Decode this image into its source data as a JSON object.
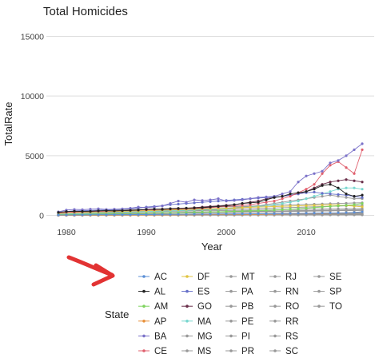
{
  "chart_data": {
    "type": "line",
    "title": "Total Homicides",
    "xlabel": "Year",
    "ylabel": "TotalRate",
    "xlim": [
      1977.5,
      2018.5
    ],
    "ylim": [
      -700,
      15700
    ],
    "x_ticks": [
      1980,
      1990,
      2000,
      2010
    ],
    "y_ticks": [
      0,
      5000,
      10000,
      15000
    ],
    "y_tick_labels": [
      "0",
      "5000",
      "10000",
      "15000"
    ],
    "grid": true,
    "legend_title": "State",
    "legend_position": "bottom",
    "x": [
      1979,
      1980,
      1981,
      1982,
      1983,
      1984,
      1985,
      1986,
      1987,
      1988,
      1989,
      1990,
      1991,
      1992,
      1993,
      1994,
      1995,
      1996,
      1997,
      1998,
      1999,
      2000,
      2001,
      2002,
      2003,
      2004,
      2005,
      2006,
      2007,
      2008,
      2009,
      2010,
      2011,
      2012,
      2013,
      2014,
      2015,
      2016,
      2017
    ],
    "series": [
      {
        "name": "AC",
        "color": "#5b8fd6",
        "values": [
          30,
          35,
          40,
          45,
          50,
          55,
          55,
          60,
          60,
          65,
          70,
          70,
          75,
          80,
          80,
          85,
          90,
          95,
          100,
          105,
          110,
          115,
          120,
          125,
          130,
          135,
          140,
          145,
          150,
          155,
          160,
          170,
          180,
          190,
          200,
          210,
          220,
          250,
          300
        ]
      },
      {
        "name": "AL",
        "color": "#222222",
        "values": [
          250,
          320,
          350,
          330,
          340,
          380,
          400,
          380,
          400,
          420,
          450,
          500,
          520,
          500,
          550,
          570,
          600,
          620,
          650,
          700,
          750,
          800,
          900,
          1000,
          1050,
          1100,
          1300,
          1500,
          1600,
          1800,
          1900,
          2000,
          2200,
          2500,
          2600,
          2300,
          1800,
          1600,
          1700
        ]
      },
      {
        "name": "AM",
        "color": "#7fd45f",
        "values": [
          60,
          70,
          80,
          90,
          100,
          110,
          120,
          130,
          140,
          150,
          160,
          170,
          180,
          190,
          200,
          210,
          230,
          250,
          270,
          290,
          300,
          320,
          340,
          360,
          380,
          400,
          420,
          450,
          480,
          520,
          560,
          600,
          650,
          700,
          750,
          800,
          850,
          900,
          1000
        ]
      },
      {
        "name": "AP",
        "color": "#e8903a",
        "values": [
          10,
          12,
          15,
          18,
          20,
          22,
          25,
          28,
          30,
          32,
          35,
          38,
          40,
          42,
          45,
          48,
          50,
          55,
          60,
          65,
          70,
          75,
          80,
          85,
          90,
          95,
          100,
          110,
          120,
          130,
          140,
          150,
          160,
          170,
          180,
          190,
          200,
          250,
          300
        ]
      },
      {
        "name": "BA",
        "color": "#7b72c9",
        "values": [
          300,
          450,
          500,
          480,
          520,
          560,
          500,
          520,
          550,
          600,
          700,
          650,
          700,
          800,
          1000,
          1200,
          1100,
          1300,
          1250,
          1300,
          1400,
          1200,
          1250,
          1300,
          1400,
          1500,
          1550,
          1600,
          1800,
          2000,
          2800,
          3300,
          3500,
          3700,
          4400,
          4600,
          5000,
          5500,
          6000
        ]
      },
      {
        "name": "CE",
        "color": "#e0606e",
        "values": [
          200,
          250,
          280,
          300,
          320,
          340,
          360,
          380,
          400,
          420,
          440,
          460,
          480,
          500,
          520,
          540,
          560,
          580,
          600,
          650,
          700,
          750,
          800,
          850,
          900,
          1000,
          1100,
          1200,
          1400,
          1600,
          1900,
          2200,
          2600,
          3500,
          4200,
          4500,
          4000,
          3500,
          5500
        ]
      },
      {
        "name": "DF",
        "color": "#e0c440",
        "values": [
          150,
          200,
          220,
          240,
          260,
          280,
          300,
          320,
          340,
          360,
          380,
          400,
          420,
          440,
          460,
          480,
          500,
          520,
          540,
          560,
          580,
          600,
          620,
          650,
          680,
          700,
          720,
          740,
          760,
          780,
          800,
          820,
          840,
          860,
          880,
          860,
          820,
          780,
          720
        ]
      },
      {
        "name": "ES",
        "color": "#6670c8",
        "values": [
          250,
          330,
          380,
          400,
          420,
          440,
          460,
          480,
          520,
          560,
          620,
          700,
          750,
          800,
          900,
          950,
          1000,
          1050,
          1100,
          1150,
          1200,
          1250,
          1300,
          1350,
          1400,
          1450,
          1500,
          1550,
          1600,
          1700,
          1800,
          1900,
          1950,
          1850,
          1800,
          1750,
          1700,
          1600,
          1500
        ]
      },
      {
        "name": "GO",
        "color": "#6a2f4a",
        "values": [
          150,
          200,
          250,
          280,
          300,
          330,
          360,
          380,
          400,
          430,
          460,
          480,
          500,
          520,
          550,
          580,
          600,
          650,
          700,
          750,
          800,
          850,
          900,
          1000,
          1100,
          1200,
          1400,
          1500,
          1600,
          1700,
          1800,
          2000,
          2300,
          2600,
          2800,
          2900,
          3000,
          2900,
          2800
        ]
      },
      {
        "name": "MA",
        "color": "#78d7cf",
        "values": [
          100,
          120,
          140,
          160,
          180,
          200,
          220,
          240,
          260,
          280,
          300,
          320,
          340,
          360,
          380,
          400,
          420,
          450,
          480,
          500,
          520,
          550,
          600,
          650,
          700,
          750,
          800,
          900,
          1000,
          1100,
          1200,
          1400,
          1600,
          1800,
          2000,
          2200,
          2300,
          2300,
          2200
        ]
      },
      {
        "name": "MG",
        "color": "#999999",
        "values": [
          200,
          220,
          230,
          240,
          250,
          260,
          280,
          300,
          320,
          340,
          360,
          380,
          400,
          420,
          440,
          460,
          480,
          500,
          520,
          540,
          560,
          600,
          650,
          700,
          750,
          800,
          900,
          1000,
          1100,
          1200,
          1300,
          1400,
          1500,
          1600,
          1700,
          1600,
          1500,
          1400,
          1400
        ]
      },
      {
        "name": "MS",
        "color": "#999999",
        "values": [
          50,
          60,
          70,
          80,
          90,
          100,
          110,
          120,
          130,
          140,
          150,
          160,
          170,
          180,
          190,
          200,
          210,
          220,
          230,
          240,
          250,
          260,
          270,
          280,
          290,
          300,
          310,
          320,
          330,
          340,
          350,
          360,
          370,
          380,
          390,
          400,
          410,
          420,
          430
        ]
      },
      {
        "name": "MT",
        "color": "#999999",
        "values": [
          40,
          50,
          60,
          70,
          80,
          90,
          100,
          110,
          120,
          130,
          140,
          150,
          160,
          170,
          180,
          190,
          200,
          210,
          220,
          230,
          240,
          250,
          260,
          270,
          280,
          290,
          300,
          310,
          320,
          330,
          340,
          350,
          360,
          370,
          380,
          390,
          400,
          410,
          420
        ]
      },
      {
        "name": "PA",
        "color": "#999999",
        "values": [
          80,
          100,
          120,
          140,
          160,
          180,
          200,
          220,
          240,
          260,
          280,
          300,
          320,
          340,
          360,
          380,
          400,
          420,
          440,
          460,
          480,
          500,
          520,
          540,
          560,
          580,
          600,
          620,
          640,
          660,
          680,
          700,
          720,
          740,
          760,
          780,
          800,
          820,
          840
        ]
      },
      {
        "name": "PB",
        "color": "#999999",
        "values": [
          30,
          35,
          40,
          45,
          50,
          55,
          60,
          65,
          70,
          75,
          80,
          85,
          90,
          95,
          100,
          105,
          110,
          115,
          120,
          125,
          130,
          135,
          140,
          145,
          150,
          155,
          160,
          165,
          170,
          175,
          180,
          185,
          190,
          195,
          200,
          205,
          210,
          215,
          220
        ]
      },
      {
        "name": "PE",
        "color": "#999999",
        "values": [
          100,
          110,
          120,
          130,
          140,
          150,
          160,
          170,
          180,
          190,
          200,
          210,
          220,
          230,
          240,
          250,
          260,
          270,
          280,
          290,
          300,
          310,
          320,
          330,
          340,
          350,
          360,
          370,
          380,
          390,
          400,
          410,
          420,
          430,
          440,
          450,
          460,
          470,
          480
        ]
      },
      {
        "name": "PI",
        "color": "#999999",
        "values": [
          20,
          22,
          24,
          26,
          28,
          30,
          32,
          34,
          36,
          38,
          40,
          42,
          44,
          46,
          48,
          50,
          52,
          54,
          56,
          58,
          60,
          62,
          64,
          66,
          68,
          70,
          72,
          74,
          76,
          78,
          80,
          82,
          84,
          86,
          88,
          90,
          92,
          94,
          96
        ]
      },
      {
        "name": "PR",
        "color": "#999999",
        "values": [
          60,
          70,
          80,
          90,
          100,
          110,
          120,
          130,
          140,
          150,
          160,
          170,
          180,
          190,
          200,
          210,
          220,
          230,
          240,
          250,
          260,
          270,
          280,
          290,
          300,
          310,
          320,
          330,
          340,
          350,
          360,
          370,
          380,
          390,
          400,
          410,
          420,
          430,
          440
        ]
      },
      {
        "name": "RJ",
        "color": "#999999",
        "values": [
          300,
          320,
          340,
          360,
          380,
          400,
          420,
          440,
          460,
          480,
          500,
          520,
          540,
          560,
          580,
          600,
          620,
          640,
          660,
          680,
          700,
          720,
          740,
          760,
          780,
          800,
          820,
          840,
          860,
          880,
          900,
          920,
          940,
          960,
          980,
          1000,
          1020,
          1040,
          1060
        ]
      },
      {
        "name": "RN",
        "color": "#999999",
        "values": [
          20,
          24,
          28,
          32,
          36,
          40,
          44,
          48,
          52,
          56,
          60,
          64,
          68,
          72,
          76,
          80,
          84,
          88,
          92,
          96,
          100,
          104,
          108,
          112,
          116,
          120,
          124,
          128,
          132,
          136,
          140,
          144,
          148,
          152,
          156,
          160,
          164,
          168,
          172
        ]
      },
      {
        "name": "RO",
        "color": "#999999",
        "values": [
          10,
          12,
          14,
          16,
          18,
          20,
          22,
          24,
          26,
          28,
          30,
          32,
          34,
          36,
          38,
          40,
          42,
          44,
          46,
          48,
          50,
          52,
          54,
          56,
          58,
          60,
          62,
          64,
          66,
          68,
          70,
          72,
          74,
          76,
          78,
          80,
          82,
          84,
          86
        ]
      },
      {
        "name": "RR",
        "color": "#999999",
        "values": [
          5,
          6,
          7,
          8,
          9,
          10,
          11,
          12,
          13,
          14,
          15,
          16,
          17,
          18,
          19,
          20,
          21,
          22,
          23,
          24,
          25,
          26,
          27,
          28,
          29,
          30,
          31,
          32,
          33,
          34,
          35,
          36,
          37,
          38,
          39,
          40,
          41,
          42,
          43
        ]
      },
      {
        "name": "RS",
        "color": "#999999",
        "values": [
          90,
          100,
          110,
          120,
          130,
          140,
          150,
          160,
          170,
          180,
          190,
          200,
          210,
          220,
          230,
          240,
          250,
          260,
          270,
          280,
          290,
          300,
          310,
          320,
          330,
          340,
          350,
          360,
          370,
          380,
          390,
          400,
          410,
          420,
          430,
          440,
          450,
          460,
          470
        ]
      },
      {
        "name": "SC",
        "color": "#999999",
        "values": [
          15,
          18,
          21,
          24,
          27,
          30,
          33,
          36,
          39,
          42,
          45,
          48,
          51,
          54,
          57,
          60,
          63,
          66,
          69,
          72,
          75,
          78,
          81,
          84,
          87,
          90,
          93,
          96,
          99,
          102,
          105,
          108,
          111,
          114,
          117,
          120,
          123,
          126,
          129
        ]
      },
      {
        "name": "SE",
        "color": "#999999",
        "values": [
          10,
          12,
          14,
          16,
          18,
          20,
          22,
          24,
          26,
          28,
          30,
          32,
          34,
          36,
          38,
          40,
          42,
          44,
          46,
          48,
          50,
          52,
          54,
          56,
          58,
          60,
          62,
          64,
          66,
          68,
          70,
          72,
          74,
          76,
          78,
          80,
          82,
          84,
          86
        ]
      },
      {
        "name": "SP",
        "color": "#999999",
        "values": [
          200,
          210,
          220,
          230,
          240,
          250,
          260,
          270,
          280,
          290,
          300,
          310,
          320,
          330,
          340,
          350,
          360,
          370,
          380,
          390,
          400,
          410,
          420,
          430,
          440,
          450,
          460,
          470,
          480,
          490,
          500,
          510,
          520,
          530,
          540,
          550,
          560,
          570,
          580
        ]
      },
      {
        "name": "TO",
        "color": "#999999",
        "values": [
          5,
          6,
          7,
          8,
          9,
          10,
          11,
          12,
          13,
          14,
          15,
          16,
          17,
          18,
          19,
          20,
          21,
          22,
          23,
          24,
          25,
          26,
          27,
          28,
          29,
          30,
          31,
          32,
          33,
          34,
          35,
          36,
          37,
          38,
          39,
          40,
          41,
          42,
          43
        ]
      }
    ],
    "legend_columns": [
      [
        "AC",
        "AL",
        "AM",
        "AP",
        "BA",
        "CE"
      ],
      [
        "DF",
        "ES",
        "GO",
        "MA",
        "MG",
        "MS"
      ],
      [
        "MT",
        "PA",
        "PB",
        "PE",
        "PI",
        "PR"
      ],
      [
        "RJ",
        "RN",
        "RO",
        "RR",
        "RS",
        "SC"
      ],
      [
        "SE",
        "SP",
        "TO"
      ]
    ],
    "annotation": {
      "type": "arrow",
      "color": "#e23333"
    }
  }
}
